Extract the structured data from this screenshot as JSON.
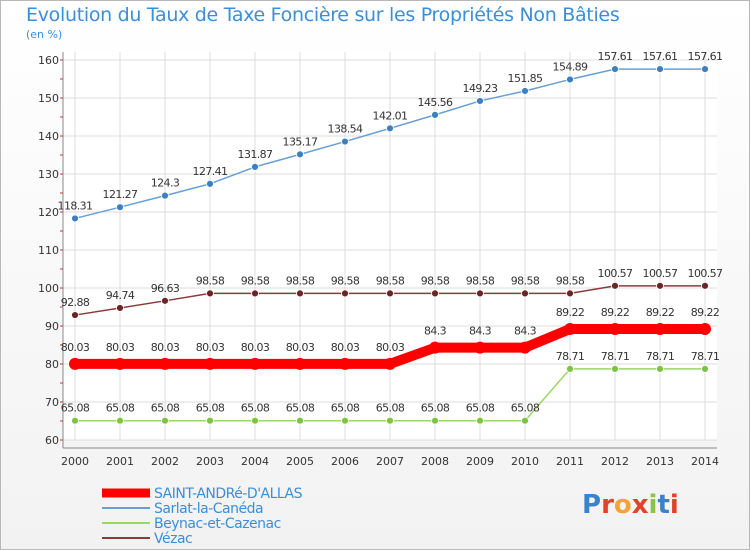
{
  "title": "Evolution du Taux de Taxe Foncière sur les Propriétés Non Bâties",
  "subtitle": "(en %)",
  "logo": {
    "text": "Proxiti",
    "colors": [
      "#3a82c9",
      "#e0432a",
      "#f2a33a",
      "#e0432a",
      "#8cc34a",
      "#3a82c9",
      "#e0432a"
    ]
  },
  "chart_data": {
    "type": "line",
    "title": "Evolution du Taux de Taxe Foncière sur les Propriétés Non Bâties",
    "ylabel": "(en %)",
    "xlabel": "",
    "ylim": [
      60,
      160
    ],
    "yticks": [
      "60",
      "70",
      "80",
      "90",
      "100",
      "110",
      "120",
      "130",
      "140",
      "150",
      "160"
    ],
    "categories": [
      "2000",
      "2001",
      "2002",
      "2003",
      "2004",
      "2005",
      "2006",
      "2007",
      "2008",
      "2009",
      "2010",
      "2011",
      "2012",
      "2013",
      "2014"
    ],
    "series": [
      {
        "name": "SAINT-ANDRé-D'ALLAS",
        "color": "#ff0000",
        "values": [
          80.03,
          80.03,
          80.03,
          80.03,
          80.03,
          80.03,
          80.03,
          80.03,
          84.3,
          84.3,
          84.3,
          89.22,
          89.22,
          89.22,
          89.22
        ],
        "labels": [
          "80.03",
          "80.03",
          "80.03",
          "80.03",
          "80.03",
          "80.03",
          "80.03",
          "80.03",
          "84.3",
          "84.3",
          "84.3",
          "89.22",
          "89.22",
          "89.22",
          "89.22"
        ],
        "bold": true
      },
      {
        "name": "Sarlat-la-Canéda",
        "color": "#6a9fd4",
        "marker": "#3c80c0",
        "values": [
          118.31,
          121.27,
          124.3,
          127.41,
          131.87,
          135.17,
          138.54,
          142.01,
          145.56,
          149.23,
          151.85,
          154.89,
          157.61,
          157.61,
          157.61
        ],
        "labels": [
          "118.31",
          "121.27",
          "124.3",
          "127.41",
          "131.87",
          "135.17",
          "138.54",
          "142.01",
          "145.56",
          "149.23",
          "151.85",
          "154.89",
          "157.61",
          "157.61",
          "157.61"
        ]
      },
      {
        "name": "Beynac-et-Cazenac",
        "color": "#9ad66a",
        "marker": "#7cc444",
        "values": [
          65.08,
          65.08,
          65.08,
          65.08,
          65.08,
          65.08,
          65.08,
          65.08,
          65.08,
          65.08,
          65.08,
          78.71,
          78.71,
          78.71,
          78.71
        ],
        "labels": [
          "65.08",
          "65.08",
          "65.08",
          "65.08",
          "65.08",
          "65.08",
          "65.08",
          "65.08",
          "65.08",
          "65.08",
          "65.08",
          "78.71",
          "78.71",
          "78.71",
          "78.71"
        ]
      },
      {
        "name": "Vézac",
        "color": "#8b3a3a",
        "marker": "#6b2525",
        "values": [
          92.88,
          94.74,
          96.63,
          98.58,
          98.58,
          98.58,
          98.58,
          98.58,
          98.58,
          98.58,
          98.58,
          98.58,
          100.57,
          100.57,
          100.57
        ],
        "labels": [
          "92.88",
          "94.74",
          "96.63",
          "98.58",
          "98.58",
          "98.58",
          "98.58",
          "98.58",
          "98.58",
          "98.58",
          "98.58",
          "98.58",
          "100.57",
          "100.57",
          "100.57"
        ]
      }
    ],
    "legend_position": "bottom-left",
    "grid": true
  }
}
